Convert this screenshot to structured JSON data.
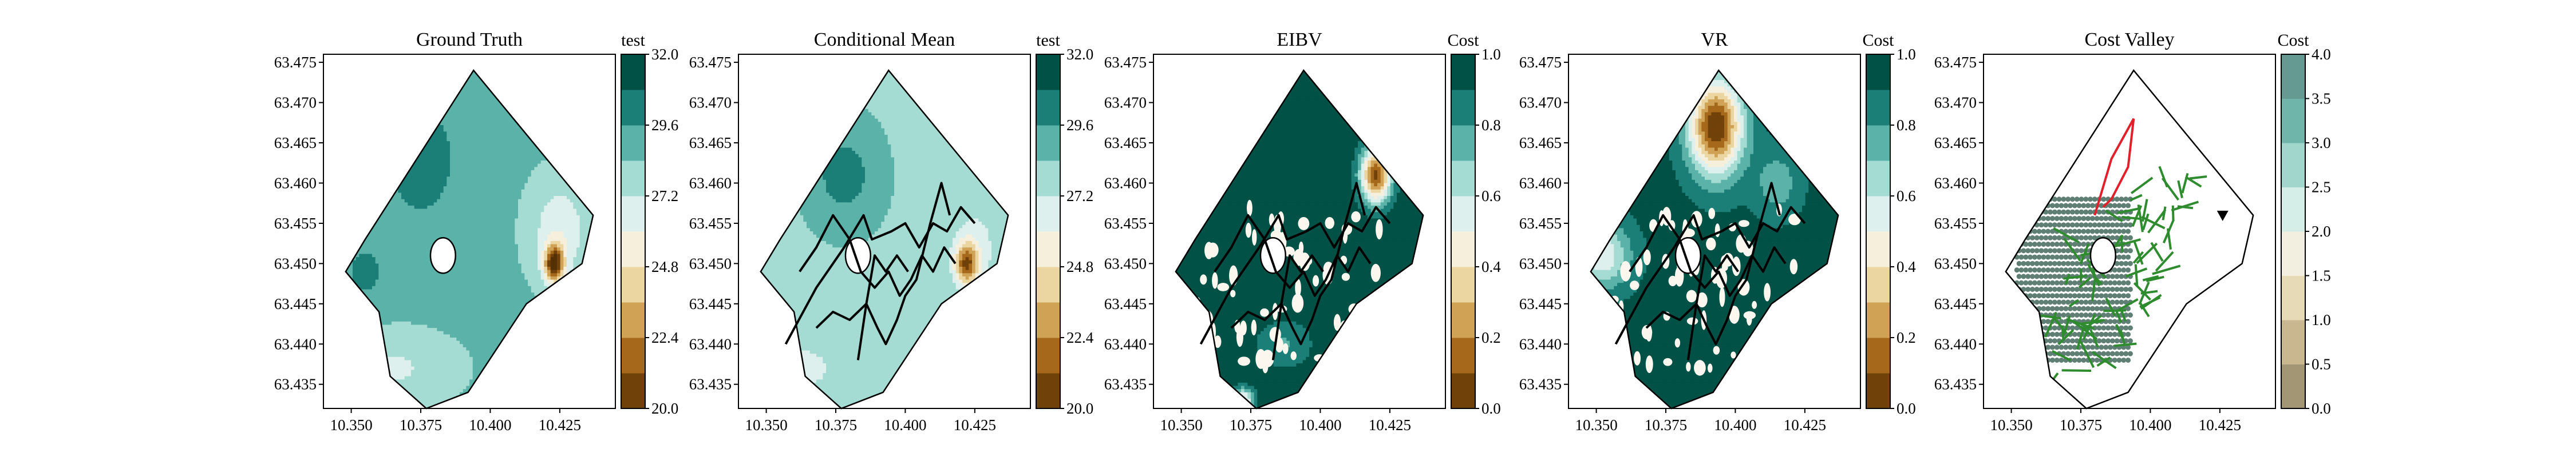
{
  "chart_data": [
    {
      "type": "heatmap",
      "title": "Ground Truth",
      "x_ticks": [
        "10.350",
        "10.375",
        "10.400",
        "10.425"
      ],
      "y_ticks": [
        "63.435",
        "63.440",
        "63.445",
        "63.450",
        "63.455",
        "63.460",
        "63.465",
        "63.470",
        "63.475"
      ],
      "colorbar": {
        "title": "test",
        "ticks": [
          "20.0",
          "22.4",
          "24.8",
          "27.2",
          "29.6",
          "32.0"
        ],
        "range": [
          20.0,
          32.0
        ],
        "colormap": "BrBG"
      },
      "field": {
        "base": 28.6,
        "features": [
          {
            "x": 10.375,
            "y": 63.463,
            "sx": 0.012,
            "sy": 0.007,
            "a": 2.2
          },
          {
            "x": 10.355,
            "y": 63.449,
            "sx": 0.008,
            "sy": 0.004,
            "a": 1.4
          },
          {
            "x": 10.365,
            "y": 63.437,
            "sx": 0.02,
            "sy": 0.004,
            "a": -1.6
          },
          {
            "x": 10.425,
            "y": 63.454,
            "sx": 0.01,
            "sy": 0.006,
            "a": -2.4
          },
          {
            "x": 10.423,
            "y": 63.45,
            "sx": 0.0035,
            "sy": 0.0022,
            "a": -8.5
          }
        ]
      },
      "paths": []
    },
    {
      "type": "heatmap",
      "title": "Conditional Mean",
      "x_ticks": [
        "10.350",
        "10.375",
        "10.400",
        "10.425"
      ],
      "y_ticks": [
        "63.435",
        "63.440",
        "63.445",
        "63.450",
        "63.455",
        "63.460",
        "63.465",
        "63.470",
        "63.475"
      ],
      "colorbar": {
        "title": "test",
        "ticks": [
          "20.0",
          "22.4",
          "24.8",
          "27.2",
          "29.6",
          "32.0"
        ],
        "range": [
          20.0,
          32.0
        ],
        "colormap": "BrBG"
      },
      "field": {
        "base": 28.2,
        "features": [
          {
            "x": 10.378,
            "y": 63.461,
            "sx": 0.012,
            "sy": 0.006,
            "a": 2.0
          },
          {
            "x": 10.36,
            "y": 63.437,
            "sx": 0.02,
            "sy": 0.004,
            "a": -1.4
          },
          {
            "x": 10.405,
            "y": 63.468,
            "sx": 0.006,
            "sy": 0.004,
            "a": -0.8
          },
          {
            "x": 10.425,
            "y": 63.452,
            "sx": 0.008,
            "sy": 0.005,
            "a": -1.6
          },
          {
            "x": 10.422,
            "y": 63.45,
            "sx": 0.004,
            "sy": 0.0025,
            "a": -6.5
          }
        ]
      },
      "paths": [
        [
          [
            10.357,
            63.44
          ],
          [
            10.368,
            63.447
          ],
          [
            10.378,
            63.452
          ],
          [
            10.385,
            63.456
          ],
          [
            10.388,
            63.453
          ],
          [
            10.395,
            63.454
          ],
          [
            10.4,
            63.455
          ],
          [
            10.405,
            63.452
          ],
          [
            10.41,
            63.455
          ],
          [
            10.415,
            63.454
          ],
          [
            10.42,
            63.457
          ],
          [
            10.425,
            63.455
          ]
        ],
        [
          [
            10.362,
            63.449
          ],
          [
            10.368,
            63.452
          ],
          [
            10.374,
            63.456
          ],
          [
            10.38,
            63.453
          ],
          [
            10.384,
            63.449
          ],
          [
            10.389,
            63.447
          ],
          [
            10.394,
            63.449
          ],
          [
            10.398,
            63.446
          ],
          [
            10.402,
            63.448
          ],
          [
            10.406,
            63.451
          ],
          [
            10.41,
            63.449
          ],
          [
            10.414,
            63.452
          ],
          [
            10.418,
            63.45
          ]
        ],
        [
          [
            10.368,
            63.442
          ],
          [
            10.374,
            63.444
          ],
          [
            10.38,
            63.443
          ],
          [
            10.386,
            63.445
          ],
          [
            10.39,
            63.442
          ],
          [
            10.393,
            63.44
          ],
          [
            10.397,
            63.443
          ],
          [
            10.4,
            63.446
          ],
          [
            10.404,
            63.448
          ],
          [
            10.409,
            63.455
          ],
          [
            10.413,
            63.46
          ],
          [
            10.416,
            63.456
          ]
        ],
        [
          [
            10.383,
            63.438
          ],
          [
            10.386,
            63.445
          ],
          [
            10.389,
            63.451
          ],
          [
            10.393,
            63.449
          ],
          [
            10.397,
            63.451
          ],
          [
            10.401,
            63.449
          ]
        ]
      ]
    },
    {
      "type": "heatmap",
      "title": "EIBV",
      "x_ticks": [
        "10.350",
        "10.375",
        "10.400",
        "10.425"
      ],
      "y_ticks": [
        "63.435",
        "63.440",
        "63.445",
        "63.450",
        "63.455",
        "63.460",
        "63.465",
        "63.470",
        "63.475"
      ],
      "colorbar": {
        "title": "Cost",
        "ticks": [
          "0.0",
          "0.2",
          "0.4",
          "0.6",
          "0.8",
          "1.0"
        ],
        "range": [
          0.0,
          1.0
        ],
        "colormap": "BrBG"
      },
      "field": {
        "base": 0.97,
        "features": [
          {
            "x": 10.42,
            "y": 63.461,
            "sx": 0.0055,
            "sy": 0.0035,
            "a": -0.9
          },
          {
            "x": 10.372,
            "y": 63.433,
            "sx": 0.004,
            "sy": 0.0015,
            "a": -0.55
          },
          {
            "x": 10.352,
            "y": 63.436,
            "sx": 0.006,
            "sy": 0.002,
            "a": -0.35
          },
          {
            "x": 10.387,
            "y": 63.44,
            "sx": 0.01,
            "sy": 0.003,
            "a": -0.18
          }
        ]
      },
      "spots": true,
      "paths": [
        [
          [
            10.357,
            63.44
          ],
          [
            10.368,
            63.447
          ],
          [
            10.378,
            63.452
          ],
          [
            10.385,
            63.456
          ],
          [
            10.388,
            63.453
          ],
          [
            10.395,
            63.454
          ],
          [
            10.4,
            63.455
          ],
          [
            10.405,
            63.452
          ],
          [
            10.41,
            63.455
          ],
          [
            10.415,
            63.454
          ],
          [
            10.42,
            63.457
          ],
          [
            10.425,
            63.455
          ]
        ],
        [
          [
            10.362,
            63.449
          ],
          [
            10.368,
            63.452
          ],
          [
            10.374,
            63.456
          ],
          [
            10.38,
            63.453
          ],
          [
            10.384,
            63.449
          ],
          [
            10.389,
            63.447
          ],
          [
            10.394,
            63.449
          ],
          [
            10.398,
            63.446
          ],
          [
            10.402,
            63.448
          ],
          [
            10.406,
            63.451
          ],
          [
            10.41,
            63.449
          ],
          [
            10.414,
            63.452
          ],
          [
            10.418,
            63.45
          ]
        ],
        [
          [
            10.368,
            63.442
          ],
          [
            10.374,
            63.444
          ],
          [
            10.38,
            63.443
          ],
          [
            10.386,
            63.445
          ],
          [
            10.39,
            63.442
          ],
          [
            10.393,
            63.44
          ],
          [
            10.397,
            63.443
          ],
          [
            10.4,
            63.446
          ],
          [
            10.404,
            63.448
          ],
          [
            10.409,
            63.455
          ],
          [
            10.413,
            63.46
          ],
          [
            10.416,
            63.456
          ]
        ],
        [
          [
            10.383,
            63.438
          ],
          [
            10.386,
            63.445
          ],
          [
            10.389,
            63.451
          ],
          [
            10.393,
            63.449
          ],
          [
            10.397,
            63.451
          ],
          [
            10.401,
            63.449
          ]
        ]
      ]
    },
    {
      "type": "heatmap",
      "title": "VR",
      "x_ticks": [
        "10.350",
        "10.375",
        "10.400",
        "10.425"
      ],
      "y_ticks": [
        "63.435",
        "63.440",
        "63.445",
        "63.450",
        "63.455",
        "63.460",
        "63.465",
        "63.470",
        "63.475"
      ],
      "colorbar": {
        "title": "Cost",
        "ticks": [
          "0.0",
          "0.2",
          "0.4",
          "0.6",
          "0.8",
          "1.0"
        ],
        "range": [
          0.0,
          1.0
        ],
        "colormap": "BrBG"
      },
      "field": {
        "base": 0.93,
        "features": [
          {
            "x": 10.393,
            "y": 63.467,
            "sx": 0.0095,
            "sy": 0.0058,
            "a": -0.93
          },
          {
            "x": 10.352,
            "y": 63.451,
            "sx": 0.01,
            "sy": 0.004,
            "a": -0.42
          },
          {
            "x": 10.415,
            "y": 63.46,
            "sx": 0.008,
            "sy": 0.004,
            "a": -0.2
          }
        ]
      },
      "spots": true,
      "paths": [
        [
          [
            10.357,
            63.44
          ],
          [
            10.368,
            63.447
          ],
          [
            10.378,
            63.452
          ],
          [
            10.385,
            63.456
          ],
          [
            10.388,
            63.453
          ],
          [
            10.395,
            63.454
          ],
          [
            10.4,
            63.455
          ],
          [
            10.405,
            63.452
          ],
          [
            10.41,
            63.455
          ],
          [
            10.415,
            63.454
          ],
          [
            10.42,
            63.457
          ],
          [
            10.425,
            63.455
          ]
        ],
        [
          [
            10.362,
            63.449
          ],
          [
            10.368,
            63.452
          ],
          [
            10.374,
            63.456
          ],
          [
            10.38,
            63.453
          ],
          [
            10.384,
            63.449
          ],
          [
            10.389,
            63.447
          ],
          [
            10.394,
            63.449
          ],
          [
            10.398,
            63.446
          ],
          [
            10.402,
            63.448
          ],
          [
            10.406,
            63.451
          ],
          [
            10.41,
            63.449
          ],
          [
            10.414,
            63.452
          ],
          [
            10.418,
            63.45
          ]
        ],
        [
          [
            10.368,
            63.442
          ],
          [
            10.374,
            63.444
          ],
          [
            10.38,
            63.443
          ],
          [
            10.386,
            63.445
          ],
          [
            10.39,
            63.442
          ],
          [
            10.393,
            63.44
          ],
          [
            10.397,
            63.443
          ],
          [
            10.4,
            63.446
          ],
          [
            10.404,
            63.448
          ],
          [
            10.409,
            63.455
          ],
          [
            10.413,
            63.46
          ],
          [
            10.416,
            63.456
          ]
        ],
        [
          [
            10.383,
            63.438
          ],
          [
            10.386,
            63.445
          ],
          [
            10.389,
            63.451
          ],
          [
            10.393,
            63.449
          ],
          [
            10.397,
            63.451
          ],
          [
            10.401,
            63.449
          ]
        ]
      ]
    },
    {
      "type": "heatmap",
      "title": "Cost Valley",
      "x_ticks": [
        "10.350",
        "10.375",
        "10.400",
        "10.425"
      ],
      "y_ticks": [
        "63.435",
        "63.440",
        "63.445",
        "63.450",
        "63.455",
        "63.460",
        "63.465",
        "63.470",
        "63.475"
      ],
      "colorbar": {
        "title": "Cost",
        "ticks": [
          "0.0",
          "0.5",
          "1.0",
          "1.5",
          "2.0",
          "2.5",
          "3.0",
          "3.5",
          "4.0"
        ],
        "range": [
          0.0,
          4.0
        ],
        "colormap": "BrBG-light"
      },
      "field": {
        "base": 2.2,
        "features": []
      },
      "light_fill": true,
      "dot_region": {
        "x": [
          10.352,
          10.392
        ],
        "y": [
          63.438,
          63.458
        ]
      },
      "red_path": [
        [
          10.38,
          63.456
        ],
        [
          10.386,
          63.463
        ],
        [
          10.394,
          63.468
        ],
        [
          10.392,
          63.462
        ],
        [
          10.386,
          63.458
        ],
        [
          10.383,
          63.457
        ]
      ],
      "tree_seeds": [
        [
          10.375,
          63.449
        ],
        [
          10.395,
          63.455
        ],
        [
          10.4,
          63.448
        ],
        [
          10.41,
          63.457
        ],
        [
          10.37,
          63.44
        ],
        [
          10.385,
          63.441
        ]
      ],
      "marker": [
        10.426,
        63.456
      ],
      "paths": []
    }
  ]
}
